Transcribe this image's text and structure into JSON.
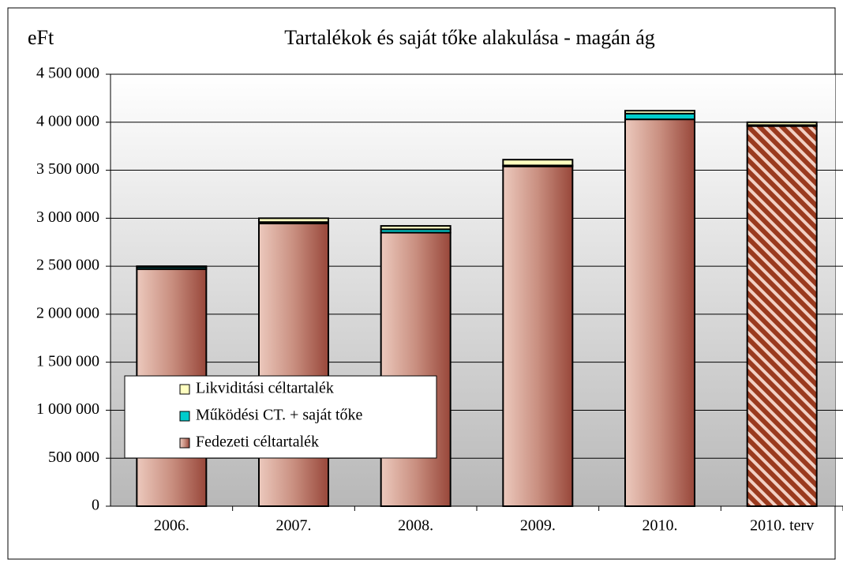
{
  "chart_data": {
    "type": "stacked_bar",
    "title": "Tartalékok és saját tőke alakulása - magán ág",
    "y_label": "eFt",
    "categories": [
      "2006.",
      "2007.",
      "2008.",
      "2009.",
      "2010.",
      "2010. terv"
    ],
    "series": [
      {
        "name": "Fedezeti céltartalék",
        "color": "#a0503e",
        "values": [
          2470000,
          2945000,
          2850000,
          3540000,
          4030000,
          3960000
        ],
        "patterns": [
          null,
          null,
          null,
          null,
          null,
          "hatch"
        ]
      },
      {
        "name": "Működési CT. + saját tőke",
        "color": "#00cccc",
        "values": [
          20000,
          15000,
          35000,
          10000,
          60000,
          10000
        ]
      },
      {
        "name": "Likviditási céltartalék",
        "color": "#ffffc0",
        "values": [
          10000,
          40000,
          35000,
          60000,
          30000,
          30000
        ]
      }
    ],
    "ylim": [
      0,
      4500000
    ],
    "yticks": [
      0,
      {
        "value": 500000,
        "label": "500 000"
      },
      {
        "value": 1000000,
        "label": "1 000 000"
      },
      {
        "value": 1500000,
        "label": "1 500 000"
      },
      {
        "value": 2000000,
        "label": "2 000 000"
      },
      {
        "value": 2500000,
        "label": "2 500 000"
      },
      {
        "value": 3000000,
        "label": "3 000 000"
      },
      {
        "value": 3500000,
        "label": "3 500 000"
      },
      {
        "value": 4000000,
        "label": "4 000 000"
      },
      {
        "value": 4500000,
        "label": "4 500 000"
      }
    ],
    "grid": true
  }
}
